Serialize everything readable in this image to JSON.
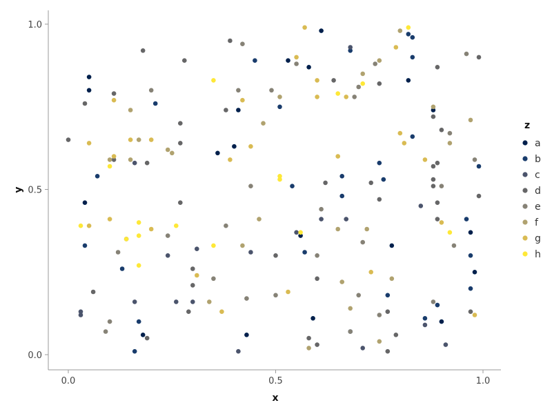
{
  "chart_data": {
    "type": "scatter",
    "xlabel": "x",
    "ylabel": "y",
    "xlim": [
      -0.05,
      1.04
    ],
    "ylim": [
      -0.045,
      1.04
    ],
    "xticks": [
      "0.0",
      "0.5",
      "1.0"
    ],
    "yticks": [
      "0.0",
      "0.5",
      "1.0"
    ],
    "grid": false,
    "legend": {
      "title": "z",
      "position": "right"
    },
    "colors": {
      "a": "#00204c",
      "b": "#193c6c",
      "c": "#4b546c",
      "d": "#666667",
      "e": "#868276",
      "f": "#b0a26f",
      "g": "#d9bb53",
      "h": "#fee838"
    },
    "series": [
      {
        "name": "a",
        "points": [
          [
            0.05,
            0.84
          ],
          [
            0.05,
            0.8
          ],
          [
            0.04,
            0.46
          ],
          [
            0.61,
            0.98
          ],
          [
            0.53,
            0.89
          ],
          [
            0.58,
            0.87
          ],
          [
            0.82,
            0.83
          ],
          [
            0.88,
            0.74
          ],
          [
            0.4,
            0.63
          ],
          [
            0.36,
            0.61
          ],
          [
            0.41,
            0.74
          ],
          [
            0.56,
            0.36
          ],
          [
            0.78,
            0.33
          ],
          [
            0.97,
            0.37
          ],
          [
            0.98,
            0.25
          ],
          [
            0.43,
            0.06
          ],
          [
            0.18,
            0.06
          ],
          [
            0.59,
            0.11
          ],
          [
            0.9,
            0.1
          ]
        ]
      },
      {
        "name": "b",
        "points": [
          [
            0.82,
            0.97
          ],
          [
            0.83,
            0.96
          ],
          [
            0.83,
            0.9
          ],
          [
            0.68,
            0.92
          ],
          [
            0.45,
            0.89
          ],
          [
            0.51,
            0.75
          ],
          [
            0.21,
            0.76
          ],
          [
            0.07,
            0.54
          ],
          [
            0.83,
            0.66
          ],
          [
            0.75,
            0.58
          ],
          [
            0.76,
            0.53
          ],
          [
            0.66,
            0.54
          ],
          [
            0.99,
            0.57
          ],
          [
            0.54,
            0.51
          ],
          [
            0.66,
            0.48
          ],
          [
            0.04,
            0.33
          ],
          [
            0.57,
            0.31
          ],
          [
            0.13,
            0.26
          ],
          [
            0.96,
            0.41
          ],
          [
            0.97,
            0.3
          ],
          [
            0.97,
            0.2
          ],
          [
            0.89,
            0.15
          ],
          [
            0.17,
            0.1
          ],
          [
            0.16,
            0.01
          ],
          [
            0.77,
            0.18
          ],
          [
            0.86,
            0.11
          ],
          [
            0.68,
            0.07
          ]
        ]
      },
      {
        "name": "c",
        "points": [
          [
            0.03,
            0.12
          ],
          [
            0.03,
            0.13
          ],
          [
            0.31,
            0.32
          ],
          [
            0.3,
            0.16
          ],
          [
            0.16,
            0.16
          ],
          [
            0.44,
            0.31
          ],
          [
            0.61,
            0.41
          ],
          [
            0.67,
            0.41
          ],
          [
            0.85,
            0.45
          ],
          [
            0.16,
            0.58
          ],
          [
            0.55,
            0.37
          ],
          [
            0.68,
            0.93
          ],
          [
            0.41,
            0.01
          ],
          [
            0.71,
            0.02
          ],
          [
            0.91,
            0.03
          ],
          [
            0.24,
            0.3
          ],
          [
            0.26,
            0.16
          ],
          [
            0.86,
            0.09
          ]
        ]
      },
      {
        "name": "d",
        "points": [
          [
            0.0,
            0.65
          ],
          [
            0.04,
            0.76
          ],
          [
            0.11,
            0.79
          ],
          [
            0.18,
            0.92
          ],
          [
            0.28,
            0.89
          ],
          [
            0.39,
            0.95
          ],
          [
            0.38,
            0.74
          ],
          [
            0.27,
            0.7
          ],
          [
            0.27,
            0.64
          ],
          [
            0.11,
            0.59
          ],
          [
            0.19,
            0.58
          ],
          [
            0.64,
            0.83
          ],
          [
            0.75,
            0.82
          ],
          [
            0.88,
            0.72
          ],
          [
            0.9,
            0.68
          ],
          [
            0.89,
            0.58
          ],
          [
            0.88,
            0.57
          ],
          [
            0.88,
            0.53
          ],
          [
            0.88,
            0.51
          ],
          [
            0.89,
            0.46
          ],
          [
            0.89,
            0.41
          ],
          [
            0.89,
            0.87
          ],
          [
            0.99,
            0.9
          ],
          [
            0.73,
            0.52
          ],
          [
            0.75,
            0.47
          ],
          [
            0.62,
            0.52
          ],
          [
            0.14,
            0.35
          ],
          [
            0.27,
            0.46
          ],
          [
            0.3,
            0.26
          ],
          [
            0.3,
            0.21
          ],
          [
            0.06,
            0.19
          ],
          [
            0.29,
            0.13
          ],
          [
            0.19,
            0.05
          ],
          [
            0.58,
            0.05
          ],
          [
            0.6,
            0.03
          ],
          [
            0.77,
            0.01
          ],
          [
            0.79,
            0.06
          ],
          [
            0.77,
            0.13
          ],
          [
            0.6,
            0.23
          ],
          [
            0.5,
            0.3
          ],
          [
            0.99,
            0.48
          ],
          [
            0.97,
            0.13
          ]
        ]
      },
      {
        "name": "e",
        "points": [
          [
            0.42,
            0.94
          ],
          [
            0.41,
            0.8
          ],
          [
            0.49,
            0.8
          ],
          [
            0.2,
            0.8
          ],
          [
            0.55,
            0.88
          ],
          [
            0.7,
            0.81
          ],
          [
            0.69,
            0.78
          ],
          [
            0.96,
            0.91
          ],
          [
            0.92,
            0.67
          ],
          [
            0.98,
            0.59
          ],
          [
            0.9,
            0.51
          ],
          [
            0.44,
            0.51
          ],
          [
            0.61,
            0.44
          ],
          [
            0.38,
            0.39
          ],
          [
            0.24,
            0.36
          ],
          [
            0.12,
            0.31
          ],
          [
            0.1,
            0.1
          ],
          [
            0.09,
            0.07
          ],
          [
            0.35,
            0.23
          ],
          [
            0.43,
            0.17
          ],
          [
            0.5,
            0.18
          ],
          [
            0.6,
            0.3
          ],
          [
            0.71,
            0.34
          ],
          [
            0.7,
            0.18
          ],
          [
            0.75,
            0.12
          ],
          [
            0.68,
            0.07
          ],
          [
            0.88,
            0.16
          ],
          [
            0.93,
            0.33
          ],
          [
            0.74,
            0.88
          ]
        ]
      },
      {
        "name": "f",
        "points": [
          [
            0.15,
            0.74
          ],
          [
            0.1,
            0.59
          ],
          [
            0.15,
            0.59
          ],
          [
            0.17,
            0.65
          ],
          [
            0.24,
            0.62
          ],
          [
            0.25,
            0.61
          ],
          [
            0.47,
            0.7
          ],
          [
            0.51,
            0.78
          ],
          [
            0.71,
            0.85
          ],
          [
            0.75,
            0.89
          ],
          [
            0.8,
            0.98
          ],
          [
            0.88,
            0.75
          ],
          [
            0.97,
            0.71
          ],
          [
            0.92,
            0.64
          ],
          [
            0.65,
            0.38
          ],
          [
            0.72,
            0.38
          ],
          [
            0.42,
            0.33
          ],
          [
            0.46,
            0.41
          ],
          [
            0.34,
            0.16
          ],
          [
            0.66,
            0.22
          ],
          [
            0.68,
            0.14
          ],
          [
            0.58,
            0.02
          ],
          [
            0.75,
            0.04
          ],
          [
            0.78,
            0.23
          ]
        ]
      },
      {
        "name": "g",
        "points": [
          [
            0.57,
            0.99
          ],
          [
            0.55,
            0.9
          ],
          [
            0.6,
            0.83
          ],
          [
            0.42,
            0.77
          ],
          [
            0.6,
            0.78
          ],
          [
            0.67,
            0.78
          ],
          [
            0.79,
            0.93
          ],
          [
            0.8,
            0.67
          ],
          [
            0.81,
            0.64
          ],
          [
            0.86,
            0.59
          ],
          [
            0.9,
            0.4
          ],
          [
            0.65,
            0.6
          ],
          [
            0.44,
            0.63
          ],
          [
            0.39,
            0.59
          ],
          [
            0.11,
            0.77
          ],
          [
            0.05,
            0.64
          ],
          [
            0.15,
            0.65
          ],
          [
            0.2,
            0.65
          ],
          [
            0.11,
            0.6
          ],
          [
            0.05,
            0.39
          ],
          [
            0.1,
            0.41
          ],
          [
            0.2,
            0.38
          ],
          [
            0.31,
            0.24
          ],
          [
            0.37,
            0.13
          ],
          [
            0.53,
            0.19
          ],
          [
            0.73,
            0.25
          ],
          [
            0.98,
            0.12
          ]
        ]
      },
      {
        "name": "h",
        "points": [
          [
            0.82,
            0.99
          ],
          [
            0.35,
            0.83
          ],
          [
            0.65,
            0.79
          ],
          [
            0.71,
            0.82
          ],
          [
            0.51,
            0.54
          ],
          [
            0.51,
            0.53
          ],
          [
            0.56,
            0.37
          ],
          [
            0.92,
            0.37
          ],
          [
            0.03,
            0.39
          ],
          [
            0.14,
            0.35
          ],
          [
            0.17,
            0.4
          ],
          [
            0.17,
            0.36
          ],
          [
            0.26,
            0.39
          ],
          [
            0.17,
            0.27
          ],
          [
            0.35,
            0.33
          ],
          [
            0.1,
            0.57
          ]
        ]
      }
    ]
  }
}
